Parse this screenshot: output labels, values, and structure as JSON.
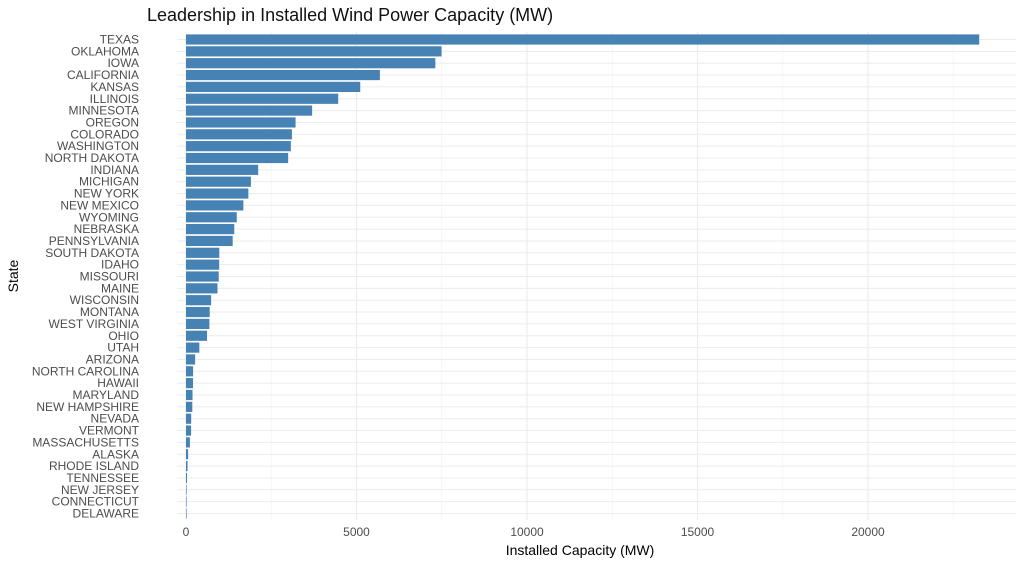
{
  "chart_data": {
    "type": "bar",
    "orientation": "horizontal",
    "title": "Leadership in Installed Wind Power Capacity (MW)",
    "xlabel": "Installed Capacity (MW)",
    "ylabel": "State",
    "xlim": [
      0,
      24000
    ],
    "xticks": [
      0,
      5000,
      10000,
      15000,
      20000
    ],
    "xtick_labels": [
      "0",
      "5000",
      "10000",
      "15000",
      "20000"
    ],
    "grid": true,
    "bar_color": "#4682b4",
    "categories": [
      "TEXAS",
      "OKLAHOMA",
      "IOWA",
      "CALIFORNIA",
      "KANSAS",
      "ILLINOIS",
      "MINNESOTA",
      "OREGON",
      "COLORADO",
      "WASHINGTON",
      "NORTH DAKOTA",
      "INDIANA",
      "MICHIGAN",
      "NEW YORK",
      "NEW MEXICO",
      "WYOMING",
      "NEBRASKA",
      "PENNSYLVANIA",
      "SOUTH DAKOTA",
      "IDAHO",
      "MISSOURI",
      "MAINE",
      "WISCONSIN",
      "MONTANA",
      "WEST VIRGINIA",
      "OHIO",
      "UTAH",
      "ARIZONA",
      "NORTH CAROLINA",
      "HAWAII",
      "MARYLAND",
      "NEW HAMPSHIRE",
      "NEVADA",
      "VERMONT",
      "MASSACHUSETTS",
      "ALASKA",
      "RHODE ISLAND",
      "TENNESSEE",
      "NEW JERSEY",
      "CONNECTICUT",
      "DELAWARE"
    ],
    "values": [
      23262,
      7495,
      7312,
      5686,
      5110,
      4464,
      3699,
      3213,
      3106,
      3075,
      2996,
      2117,
      1904,
      1829,
      1683,
      1489,
      1415,
      1369,
      977,
      973,
      959,
      923,
      737,
      695,
      686,
      617,
      391,
      268,
      208,
      206,
      191,
      185,
      152,
      149,
      114,
      62,
      45,
      29,
      9,
      5,
      2
    ]
  }
}
